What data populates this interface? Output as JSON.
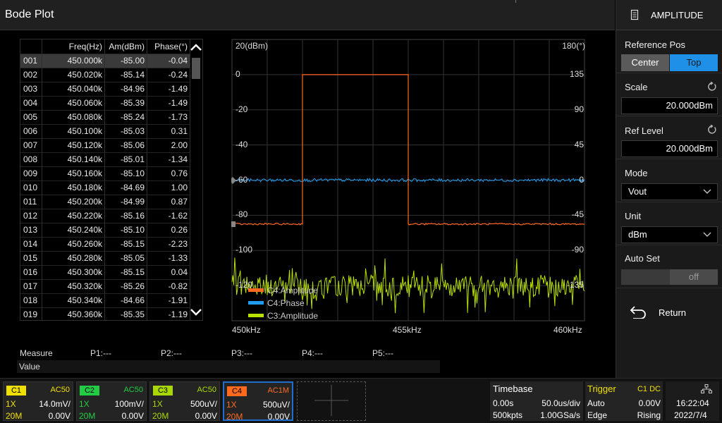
{
  "title": "Bode Plot",
  "table": {
    "headers": [
      "",
      "Freq(Hz)",
      "Am(dBm)",
      "Phase(°)"
    ],
    "selected_index": 0,
    "rows": [
      [
        "001",
        "450.000k",
        "-85.00",
        "-0.04"
      ],
      [
        "002",
        "450.020k",
        "-85.14",
        "-0.24"
      ],
      [
        "003",
        "450.040k",
        "-84.96",
        "-1.49"
      ],
      [
        "004",
        "450.060k",
        "-85.39",
        "-1.49"
      ],
      [
        "005",
        "450.080k",
        "-85.24",
        "-1.73"
      ],
      [
        "006",
        "450.100k",
        "-85.03",
        "0.31"
      ],
      [
        "007",
        "450.120k",
        "-85.06",
        "2.00"
      ],
      [
        "008",
        "450.140k",
        "-85.01",
        "-1.34"
      ],
      [
        "009",
        "450.160k",
        "-85.10",
        "0.76"
      ],
      [
        "010",
        "450.180k",
        "-84.69",
        "1.00"
      ],
      [
        "011",
        "450.200k",
        "-84.99",
        "0.87"
      ],
      [
        "012",
        "450.220k",
        "-85.16",
        "-1.62"
      ],
      [
        "013",
        "450.240k",
        "-85.10",
        "0.26"
      ],
      [
        "014",
        "450.260k",
        "-85.15",
        "-2.23"
      ],
      [
        "015",
        "450.280k",
        "-85.05",
        "-1.33"
      ],
      [
        "016",
        "450.300k",
        "-85.15",
        "0.04"
      ],
      [
        "017",
        "450.320k",
        "-85.26",
        "-0.82"
      ],
      [
        "018",
        "450.340k",
        "-84.66",
        "-1.91"
      ],
      [
        "019",
        "450.360k",
        "-85.35",
        "-1.19"
      ]
    ]
  },
  "plot": {
    "left_axis_label": "20(dBm)",
    "right_axis_label": "180(°)",
    "left_ticks": [
      "0",
      "-20",
      "-40",
      "-60",
      "-80",
      "-100",
      "-120"
    ],
    "right_ticks": [
      "135",
      "90",
      "45",
      "0",
      "-45",
      "-90",
      "-135"
    ],
    "x_labels": [
      "450kHz",
      "455kHz",
      "460kHz"
    ],
    "legend": [
      {
        "name": "C4:Amplitude",
        "color": "#ff6a1f"
      },
      {
        "name": "C4:Phase",
        "color": "#1e9cf0"
      },
      {
        "name": "C3:Amplitude",
        "color": "#b8e000"
      }
    ]
  },
  "chart_data": {
    "type": "line",
    "x_range_khz": [
      450,
      460
    ],
    "y_left_range_dbm": [
      -140,
      20
    ],
    "y_right_range_deg": [
      -180,
      180
    ],
    "series": [
      {
        "name": "C4:Amplitude",
        "description": "step",
        "x_khz": [
          450,
          452,
          452,
          455,
          455,
          460
        ],
        "y_dbm": [
          -85,
          -85,
          0,
          0,
          -85,
          -85
        ]
      },
      {
        "name": "C4:Phase",
        "x_khz": [
          450,
          460
        ],
        "y_deg": [
          0,
          0
        ]
      },
      {
        "name": "C3:Amplitude",
        "x_khz": [
          450,
          460
        ],
        "y_dbm": [
          -120,
          -120
        ]
      }
    ]
  },
  "measure": {
    "label": "Measure",
    "value_label": "Value",
    "params": [
      "P1:---",
      "P2:---",
      "P3:---",
      "P4:---",
      "P5:---"
    ]
  },
  "panel": {
    "header": "AMPLITUDE",
    "reference_pos": {
      "label": "Reference Pos",
      "options": [
        "Center",
        "Top"
      ],
      "selected": "Top"
    },
    "scale": {
      "label": "Scale",
      "value": "20.000dBm"
    },
    "ref_level": {
      "label": "Ref Level",
      "value": "20.000dBm"
    },
    "mode": {
      "label": "Mode",
      "value": "Vout"
    },
    "unit": {
      "label": "Unit",
      "value": "dBm"
    },
    "auto_set": {
      "label": "Auto Set",
      "value": "off"
    },
    "return_label": "Return"
  },
  "channels": [
    {
      "name": "C1",
      "coupling": "AC50",
      "probe": "1X",
      "scale": "14.0mV/",
      "bw": "20M",
      "offset": "0.00V",
      "color": "#f0e000"
    },
    {
      "name": "C2",
      "coupling": "AC50",
      "probe": "1X",
      "scale": "100mV/",
      "bw": "20M",
      "offset": "0.00V",
      "color": "#22cc44"
    },
    {
      "name": "C3",
      "coupling": "AC50",
      "probe": "1X",
      "scale": "500uV/",
      "bw": "20M",
      "offset": "0.00V",
      "color": "#a8d800"
    },
    {
      "name": "C4",
      "coupling": "AC1M",
      "probe": "1X",
      "scale": "500uV/",
      "bw": "20M",
      "offset": "0.00V",
      "color": "#ff6a1f"
    }
  ],
  "timebase": {
    "label": "Timebase",
    "delay": "0.00s",
    "scale": "50.0us/div",
    "points": "500kpts",
    "rate": "1.00GSa/s"
  },
  "trigger": {
    "label": "Trigger",
    "source": "C1 DC",
    "mode": "Auto",
    "level": "0.00V",
    "type": "Edge",
    "slope": "Rising"
  },
  "clock": {
    "time": "16:22:04",
    "date": "2022/7/4"
  }
}
